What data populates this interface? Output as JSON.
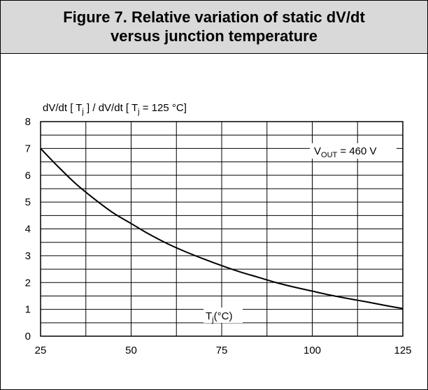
{
  "figure": {
    "title_line1": "Figure 7. Relative variation of static dV/dt",
    "title_line2": "versus junction temperature"
  },
  "chart_data": {
    "type": "line",
    "title": "Figure 7. Relative variation of static dV/dt versus junction temperature",
    "ylabel": "dV/dt [ Tj ] / dV/dt [ Tj = 125 °C]",
    "ylabel_parts": {
      "p1": "dV/dt [ T",
      "s1": "j",
      "p2": " ] / dV/dt [ T",
      "s2": "j",
      "p3": " = 125 °C]"
    },
    "xlabel": "Tj(°C)",
    "xlabel_parts": {
      "main": "T",
      "sub": "j",
      "rest": "(°C)"
    },
    "annotation": "VOUT = 460 V",
    "annotation_parts": {
      "main": "V",
      "sub": "OUT",
      "rest": " = 460 V"
    },
    "xlim": [
      25,
      125
    ],
    "ylim": [
      0,
      8
    ],
    "x_ticks": [
      25,
      50,
      75,
      100,
      125
    ],
    "y_ticks": [
      0,
      1,
      2,
      3,
      4,
      5,
      6,
      7,
      8
    ],
    "grid": true,
    "line_color": "#000000",
    "series": [
      {
        "x": [
          25,
          30,
          35,
          40,
          45,
          50,
          55,
          60,
          65,
          70,
          75,
          80,
          85,
          90,
          95,
          100,
          105,
          110,
          115,
          120,
          125
        ],
        "values": [
          7.0,
          6.3,
          5.65,
          5.1,
          4.6,
          4.2,
          3.8,
          3.45,
          3.15,
          2.88,
          2.63,
          2.4,
          2.2,
          2.0,
          1.83,
          1.68,
          1.53,
          1.4,
          1.28,
          1.15,
          1.03
        ]
      }
    ]
  }
}
